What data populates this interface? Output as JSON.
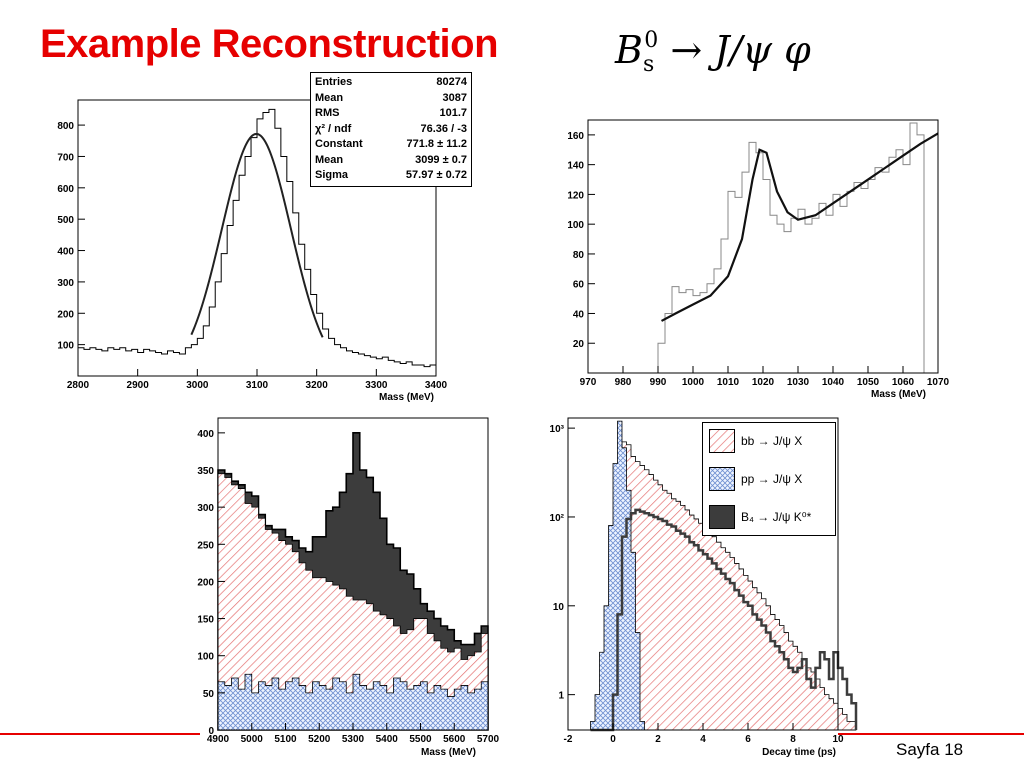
{
  "slide": {
    "title": "Example Reconstruction",
    "formula": {
      "main": "B",
      "sub": "s",
      "sup": "0",
      "rest": "→ J/ψ φ"
    },
    "page": "Sayfa 18"
  },
  "chart_data": [
    {
      "type": "line",
      "xlabel": "Mass (MeV)",
      "xlim": [
        2800,
        3400
      ],
      "ylim": [
        0,
        880
      ],
      "xticks": [
        2800,
        2900,
        3000,
        3100,
        3200,
        3300,
        3400
      ],
      "yticks": [
        100,
        200,
        300,
        400,
        500,
        600,
        700,
        800
      ],
      "xtick_labels": [
        "2800",
        "2900",
        "3000",
        "3100",
        "3200",
        "3300",
        "3400"
      ],
      "ytick_labels": [
        "100",
        "200",
        "300",
        "400",
        "500",
        "600",
        "700",
        "800"
      ],
      "hist_bin_width": 10,
      "hist": [
        90,
        85,
        90,
        85,
        80,
        90,
        85,
        90,
        80,
        85,
        75,
        85,
        80,
        75,
        70,
        80,
        75,
        70,
        90,
        100,
        120,
        160,
        220,
        300,
        390,
        480,
        560,
        640,
        700,
        760,
        820,
        840,
        850,
        790,
        700,
        620,
        520,
        420,
        340,
        260,
        200,
        150,
        120,
        100,
        90,
        80,
        75,
        70,
        65,
        60,
        55,
        60,
        50,
        45,
        40,
        45,
        35,
        35,
        30,
        35
      ],
      "fit": {
        "constant": 771.8,
        "mean": 3099,
        "sigma": 57.97,
        "xrange": [
          2990,
          3210
        ]
      },
      "stats": [
        [
          "Entries",
          "80274"
        ],
        [
          "Mean",
          "3087"
        ],
        [
          "RMS",
          "101.7"
        ],
        [
          "χ² / ndf",
          "76.36 / -3"
        ],
        [
          "Constant",
          "771.8 ± 11.2"
        ],
        [
          "Mean",
          "3099 ± 0.7"
        ],
        [
          "Sigma",
          "57.97 ± 0.72"
        ]
      ]
    },
    {
      "type": "line",
      "xlabel": "Mass (MeV)",
      "xlim": [
        970,
        1070
      ],
      "ylim": [
        0,
        170
      ],
      "xticks": [
        970,
        980,
        990,
        1000,
        1010,
        1020,
        1030,
        1040,
        1050,
        1060,
        1070
      ],
      "yticks": [
        20,
        40,
        60,
        80,
        100,
        120,
        140,
        160
      ],
      "xtick_labels": [
        "970",
        "980",
        "990",
        "1000",
        "1010",
        "1020",
        "1030",
        "1040",
        "1050",
        "1060",
        "1070"
      ],
      "ytick_labels": [
        "20",
        "40",
        "60",
        "80",
        "100",
        "120",
        "140",
        "160"
      ],
      "hist_bin_width": 2,
      "hist_start": 990,
      "hist": [
        20,
        40,
        58,
        54,
        56,
        52,
        54,
        60,
        70,
        90,
        122,
        118,
        135,
        155,
        148,
        130,
        106,
        100,
        95,
        104,
        110,
        100,
        104,
        114,
        106,
        120,
        112,
        122,
        128,
        124,
        130,
        138,
        135,
        145,
        150,
        140,
        168,
        160
      ],
      "fit_points": [
        [
          991,
          35
        ],
        [
          995,
          40
        ],
        [
          1000,
          46
        ],
        [
          1005,
          52
        ],
        [
          1010,
          65
        ],
        [
          1014,
          90
        ],
        [
          1017,
          130
        ],
        [
          1019,
          150
        ],
        [
          1021,
          148
        ],
        [
          1024,
          122
        ],
        [
          1027,
          108
        ],
        [
          1030,
          103
        ],
        [
          1035,
          106
        ],
        [
          1040,
          114
        ],
        [
          1045,
          122
        ],
        [
          1050,
          130
        ],
        [
          1055,
          138
        ],
        [
          1060,
          146
        ],
        [
          1065,
          154
        ],
        [
          1070,
          161
        ]
      ]
    },
    {
      "type": "area",
      "xlabel": "Mass (MeV)",
      "xlim": [
        4900,
        5700
      ],
      "ylim": [
        0,
        420
      ],
      "xticks": [
        4900,
        5000,
        5100,
        5200,
        5300,
        5400,
        5500,
        5600,
        5700
      ],
      "yticks": [
        0,
        50,
        100,
        150,
        200,
        250,
        300,
        350,
        400
      ],
      "xtick_labels": [
        "4900",
        "5000",
        "5100",
        "5200",
        "5300",
        "5400",
        "5500",
        "5600",
        "5700"
      ],
      "ytick_labels": [
        "0",
        "50",
        "100",
        "150",
        "200",
        "250",
        "300",
        "350",
        "400"
      ],
      "bin_width": 20,
      "series": [
        {
          "name": "pp → J/ψ X",
          "values": [
            65,
            60,
            70,
            55,
            75,
            50,
            65,
            60,
            70,
            55,
            65,
            70,
            60,
            50,
            65,
            60,
            55,
            70,
            65,
            50,
            75,
            60,
            55,
            65,
            60,
            50,
            70,
            65,
            55,
            60,
            65,
            50,
            60,
            55,
            45,
            55,
            60,
            50,
            55,
            65
          ]
        },
        {
          "name": "bb → J/ψ X",
          "values": [
            345,
            340,
            330,
            325,
            305,
            300,
            285,
            270,
            265,
            255,
            250,
            240,
            225,
            215,
            205,
            205,
            200,
            195,
            190,
            180,
            175,
            175,
            170,
            160,
            155,
            150,
            140,
            130,
            135,
            150,
            150,
            130,
            120,
            110,
            105,
            110,
            95,
            100,
            105,
            130
          ]
        },
        {
          "name": "B₄ → J/ψ K⁰*",
          "values": [
            350,
            345,
            335,
            330,
            320,
            315,
            290,
            275,
            270,
            270,
            260,
            255,
            245,
            240,
            260,
            260,
            295,
            300,
            320,
            345,
            400,
            350,
            340,
            320,
            285,
            250,
            245,
            215,
            210,
            190,
            170,
            160,
            150,
            140,
            135,
            120,
            115,
            115,
            130,
            140
          ]
        }
      ]
    },
    {
      "type": "area",
      "xlabel": "Decay time (ps)",
      "xlim": [
        -2,
        10
      ],
      "ylim": [
        0.4,
        1300
      ],
      "scale": "log",
      "xticks": [
        -2,
        0,
        2,
        4,
        6,
        8,
        10
      ],
      "yticks": [
        1,
        10,
        100,
        1000
      ],
      "xtick_labels": [
        "-2",
        "0",
        "2",
        "4",
        "6",
        "8",
        "10"
      ],
      "ytick_labels": [
        "1",
        "10",
        "10²",
        "10³"
      ],
      "bin_width": 0.2,
      "x_start": -1,
      "series": [
        {
          "name": "pp → J/ψ X",
          "values": [
            0.5,
            1,
            3,
            10,
            80,
            400,
            1200,
            600,
            200,
            40,
            5,
            0.5,
            0,
            0,
            0,
            0,
            0,
            0,
            0,
            0,
            0,
            0,
            0,
            0,
            0,
            0,
            0,
            0,
            0,
            0,
            0,
            0,
            0,
            0,
            0,
            0,
            0,
            0,
            0,
            0,
            0,
            0,
            0,
            0,
            0,
            0,
            0,
            0,
            0,
            0,
            0,
            0,
            0,
            0,
            0,
            0,
            0,
            0,
            0
          ]
        },
        {
          "name": "bb → J/ψ X",
          "values": [
            0,
            0,
            0,
            0,
            0,
            5,
            50,
            700,
            650,
            480,
            420,
            380,
            340,
            300,
            260,
            230,
            200,
            185,
            160,
            150,
            135,
            120,
            105,
            95,
            85,
            75,
            68,
            60,
            52,
            45,
            40,
            35,
            30,
            26,
            22,
            19,
            16,
            14,
            12,
            10,
            8,
            7,
            6,
            5,
            4,
            3.5,
            3,
            2.5,
            2,
            1.8,
            1.5,
            1.2,
            1,
            0.9,
            0.8,
            0.7,
            0.6,
            0.5,
            0.5
          ]
        },
        {
          "name": "B₄ → J/ψ K⁰*",
          "values": [
            0,
            0,
            0,
            0,
            0,
            1,
            8,
            60,
            95,
            110,
            120,
            115,
            110,
            105,
            100,
            95,
            90,
            82,
            78,
            70,
            65,
            60,
            52,
            48,
            42,
            38,
            34,
            30,
            26,
            23,
            20,
            18,
            15,
            13,
            11,
            10,
            8,
            7,
            6,
            5,
            4,
            3.5,
            3,
            2.5,
            2,
            1.8,
            2,
            2.5,
            1.5,
            1.2,
            2,
            3,
            2.5,
            1.5,
            3,
            2,
            1.5,
            1,
            0.8
          ]
        }
      ]
    }
  ]
}
